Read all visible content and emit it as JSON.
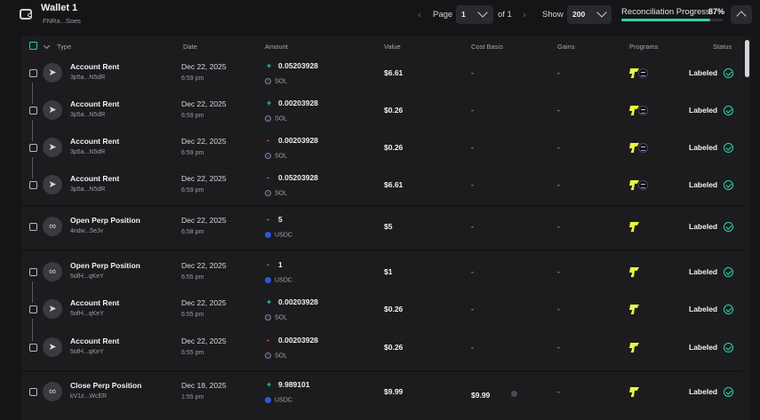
{
  "wallet": {
    "name": "Wallet 1",
    "address": "FNRa...Soes"
  },
  "pagination": {
    "page_label": "Page",
    "page": "1",
    "of_label": "of 1",
    "show_label": "Show",
    "page_size": "200"
  },
  "reconciliation": {
    "label": "Reconciliation Progress",
    "percent_text": "87%",
    "progress": 0.87,
    "accent": "#2fd3ad"
  },
  "columns": [
    "Type",
    "Date",
    "Amount",
    "Value",
    "Cost Basis",
    "Gains",
    "Programs",
    "Status"
  ],
  "rows": [
    {
      "type": "Account Rent",
      "addr": "3p5a...N5dR",
      "date": "Dec 22, 2025",
      "time": "6:59 pm",
      "sign": "+",
      "amount": "0.05203928",
      "token": "SOL",
      "value": "$6.61",
      "cost": "-",
      "gains": "-",
      "status": "Labeled",
      "icon": "send-icon",
      "programs": [
        "jupiter-icon",
        "solana-icon"
      ]
    },
    {
      "type": "Account Rent",
      "addr": "3p5a...N5dR",
      "date": "Dec 22, 2025",
      "time": "6:59 pm",
      "sign": "+",
      "amount": "0.00203928",
      "token": "SOL",
      "value": "$0.26",
      "cost": "-",
      "gains": "-",
      "status": "Labeled",
      "icon": "send-icon",
      "programs": [
        "jupiter-icon",
        "solana-icon"
      ]
    },
    {
      "type": "Account Rent",
      "addr": "3p5a...N5dR",
      "date": "Dec 22, 2025",
      "time": "6:59 pm",
      "sign": "-",
      "amount": "0.00203928",
      "token": "SOL",
      "value": "$0.26",
      "cost": "-",
      "gains": "-",
      "status": "Labeled",
      "icon": "send-icon",
      "programs": [
        "jupiter-icon",
        "solana-icon"
      ]
    },
    {
      "type": "Account Rent",
      "addr": "3p5a...N5dR",
      "date": "Dec 22, 2025",
      "time": "6:59 pm",
      "sign": "-",
      "amount": "0.05203928",
      "token": "SOL",
      "value": "$6.61",
      "cost": "-",
      "gains": "-",
      "status": "Labeled",
      "icon": "send-icon",
      "programs": [
        "jupiter-icon",
        "solana-icon"
      ]
    },
    {
      "type": "Open Perp Position",
      "addr": "4ndw...5eJv",
      "date": "Dec 22, 2025",
      "time": "6:58 pm",
      "sign": "-",
      "amount": "5",
      "token": "USDC",
      "value": "$5",
      "cost": "-",
      "gains": "-",
      "status": "Labeled",
      "icon": "infinity-icon",
      "programs": [
        "jupiter-icon"
      ]
    },
    {
      "type": "Open Perp Position",
      "addr": "5ofH...qKeY",
      "date": "Dec 22, 2025",
      "time": "6:55 pm",
      "sign": "-",
      "amount": "1",
      "token": "USDC",
      "value": "$1",
      "cost": "-",
      "gains": "-",
      "status": "Labeled",
      "icon": "infinity-icon",
      "programs": [
        "jupiter-icon"
      ]
    },
    {
      "type": "Account Rent",
      "addr": "5ofH...qKeY",
      "date": "Dec 22, 2025",
      "time": "6:55 pm",
      "sign": "+",
      "amount": "0.00203928",
      "token": "SOL",
      "value": "$0.26",
      "cost": "-",
      "gains": "-",
      "status": "Labeled",
      "icon": "send-icon",
      "programs": [
        "jupiter-icon"
      ]
    },
    {
      "type": "Account Rent",
      "addr": "5ofH...qKeY",
      "date": "Dec 22, 2025",
      "time": "6:55 pm",
      "sign": "-",
      "amount": "0.00203928",
      "token": "SOL",
      "value": "$0.26",
      "cost": "-",
      "gains": "-",
      "status": "Labeled",
      "icon": "send-icon",
      "programs": [
        "jupiter-icon"
      ]
    },
    {
      "type": "Close Perp Position",
      "addr": "kV1z...WcER",
      "date": "Dec 18, 2025",
      "time": "1:55 pm",
      "sign": "+",
      "amount": "9.989101",
      "token": "USDC",
      "value": "$9.99",
      "cost": "$9.99",
      "gains": "-",
      "status": "Labeled",
      "icon": "infinity-icon",
      "programs": [
        "jupiter-icon"
      ]
    }
  ]
}
